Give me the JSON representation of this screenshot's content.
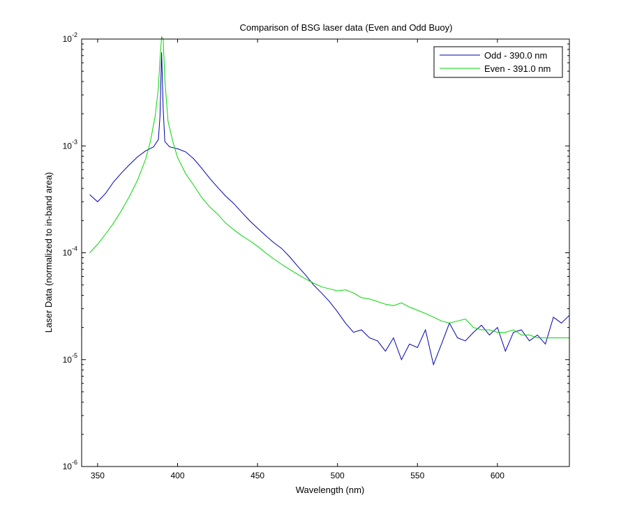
{
  "chart_data": {
    "type": "line",
    "title": "Comparison of BSG laser data (Even and Odd Buoy)",
    "xlabel": "Wavelength (nm)",
    "ylabel": "Laser Data (normalized to in-band area)",
    "xlim": [
      340,
      645
    ],
    "ylim": [
      1e-06,
      0.01
    ],
    "yscale": "log",
    "xticks": [
      350,
      400,
      450,
      500,
      550,
      600
    ],
    "yticks": [
      {
        "value": 1e-06,
        "base": "10",
        "exp": "-6"
      },
      {
        "value": 1e-05,
        "base": "10",
        "exp": "-5"
      },
      {
        "value": 0.0001,
        "base": "10",
        "exp": "-4"
      },
      {
        "value": 0.001,
        "base": "10",
        "exp": "-3"
      },
      {
        "value": 0.01,
        "base": "10",
        "exp": "-2"
      }
    ],
    "grid": false,
    "legend_position": "top-right",
    "series": [
      {
        "name": "Odd - 390.0 nm",
        "color": "#0000b0",
        "x": [
          345,
          350,
          355,
          360,
          365,
          370,
          375,
          380,
          385,
          388,
          389,
          390,
          391,
          392,
          395,
          400,
          405,
          410,
          415,
          420,
          425,
          430,
          435,
          440,
          445,
          450,
          455,
          460,
          465,
          470,
          475,
          480,
          485,
          490,
          495,
          500,
          505,
          510,
          515,
          520,
          525,
          530,
          535,
          540,
          545,
          550,
          555,
          560,
          565,
          570,
          575,
          580,
          585,
          590,
          595,
          600,
          605,
          610,
          615,
          620,
          625,
          630,
          635,
          640,
          645
        ],
        "y": [
          0.00035,
          0.0003,
          0.00036,
          0.00046,
          0.00056,
          0.00067,
          0.00079,
          0.0009,
          0.00098,
          0.00115,
          0.0019,
          0.0075,
          0.0022,
          0.0011,
          0.00098,
          0.00094,
          0.00088,
          0.00076,
          0.00062,
          0.0005,
          0.00041,
          0.00034,
          0.00029,
          0.00024,
          0.0002,
          0.00017,
          0.000145,
          0.000125,
          0.00011,
          9.2e-05,
          7.5e-05,
          6.2e-05,
          5e-05,
          4.2e-05,
          3.5e-05,
          2.8e-05,
          2.2e-05,
          1.8e-05,
          1.9e-05,
          1.6e-05,
          1.5e-05,
          1.2e-05,
          1.6e-05,
          1e-05,
          1.4e-05,
          1.3e-05,
          1.9e-05,
          9e-06,
          1.4e-05,
          2.2e-05,
          1.6e-05,
          1.5e-05,
          1.8e-05,
          2.1e-05,
          1.7e-05,
          2e-05,
          1.2e-05,
          1.8e-05,
          1.9e-05,
          1.5e-05,
          1.7e-05,
          1.4e-05,
          2.5e-05,
          2.2e-05,
          2.6e-05
        ]
      },
      {
        "name": "Even - 391.0 nm",
        "color": "#00d800",
        "x": [
          345,
          350,
          355,
          360,
          365,
          370,
          375,
          380,
          383,
          386,
          388,
          389,
          390,
          391,
          392,
          394,
          397,
          400,
          405,
          410,
          415,
          420,
          425,
          430,
          435,
          440,
          445,
          450,
          455,
          460,
          465,
          470,
          475,
          480,
          485,
          490,
          495,
          500,
          505,
          510,
          515,
          520,
          525,
          530,
          535,
          540,
          545,
          550,
          555,
          560,
          565,
          570,
          575,
          580,
          585,
          590,
          595,
          600,
          605,
          610,
          615,
          620,
          625,
          630,
          635,
          640,
          645
        ],
        "y": [
          0.0001,
          0.00012,
          0.00015,
          0.00019,
          0.00025,
          0.00034,
          0.00048,
          0.00075,
          0.0011,
          0.0019,
          0.0035,
          0.0065,
          0.0105,
          0.01,
          0.0042,
          0.0017,
          0.0011,
          0.00078,
          0.00055,
          0.00043,
          0.00033,
          0.00027,
          0.00023,
          0.00019,
          0.000165,
          0.000145,
          0.00013,
          0.000115,
          0.0001,
          8.8e-05,
          7.8e-05,
          7e-05,
          6.3e-05,
          5.7e-05,
          5.2e-05,
          4.8e-05,
          4.6e-05,
          4.4e-05,
          4.5e-05,
          4.2e-05,
          3.8e-05,
          3.7e-05,
          3.5e-05,
          3.3e-05,
          3.2e-05,
          3.4e-05,
          3.1e-05,
          2.9e-05,
          2.7e-05,
          2.5e-05,
          2.3e-05,
          2.2e-05,
          2.3e-05,
          2.4e-05,
          2e-05,
          1.9e-05,
          1.9e-05,
          1.8e-05,
          1.8e-05,
          1.9e-05,
          1.7e-05,
          1.7e-05,
          1.6e-05,
          1.6e-05,
          1.6e-05,
          1.6e-05,
          1.6e-05
        ]
      }
    ]
  }
}
